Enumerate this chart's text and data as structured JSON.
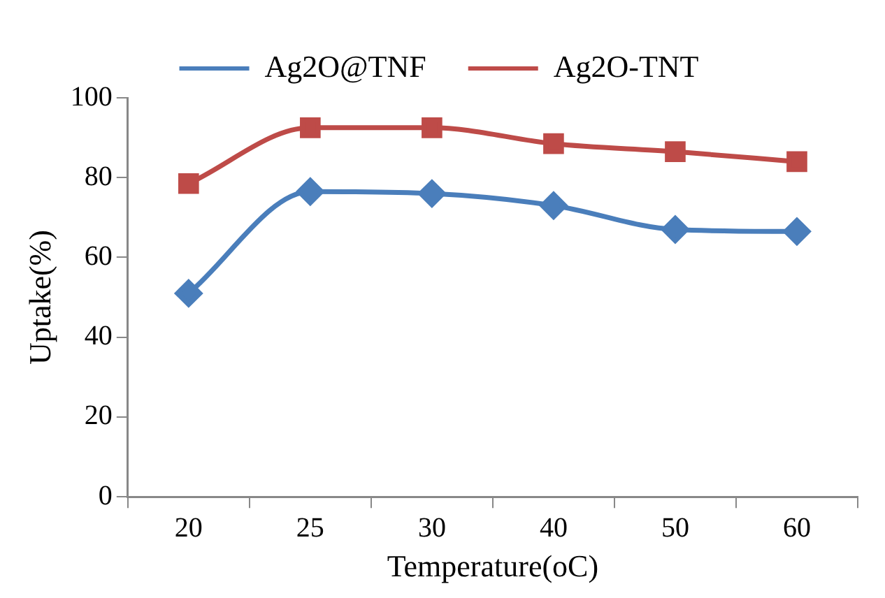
{
  "chart_data": {
    "type": "line",
    "xlabel": "Temperature(oC)",
    "ylabel": "Uptake(%)",
    "categories": [
      "20",
      "25",
      "30",
      "40",
      "50",
      "60"
    ],
    "series": [
      {
        "name": "Ag2O@TNF",
        "color": "#4a7ebb",
        "marker": "diamond",
        "values": [
          51,
          76.5,
          76,
          73,
          67,
          66.5
        ]
      },
      {
        "name": "Ag2O-TNT",
        "color": "#be4b48",
        "marker": "square",
        "values": [
          78.5,
          92.5,
          92.5,
          88.5,
          86.5,
          84
        ]
      }
    ],
    "ylim": [
      0,
      100
    ],
    "yticks": [
      0,
      20,
      40,
      60,
      80,
      100
    ],
    "grid": false,
    "legend": "top",
    "line_style": "solid"
  }
}
